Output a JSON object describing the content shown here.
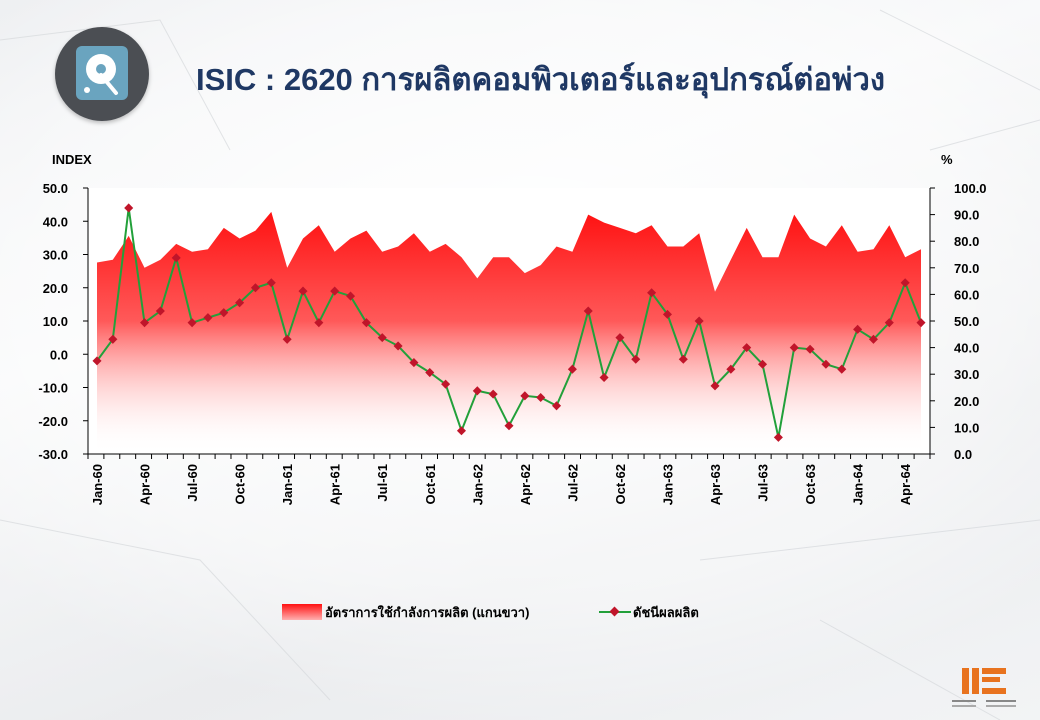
{
  "title": "ISIC : 2620 การผลิตคอมพิวเตอร์และอุปกรณ์ต่อพ่วง",
  "logo_icon": "hard-disk-icon",
  "footer_logo_icon": "oie-logo-icon",
  "colors": {
    "title": "#1f3864",
    "area": "#ff1a1a",
    "line": "#22a03a",
    "marker": "#c0152a"
  },
  "chart_data": {
    "type": "line",
    "ylabel": "INDEX",
    "y2label": "%",
    "ylim": [
      -30,
      50
    ],
    "y2lim": [
      0,
      100
    ],
    "yticks": [
      "50.0",
      "40.0",
      "30.0",
      "20.0",
      "10.0",
      "0.0",
      "-10.0",
      "-20.0",
      "-30.0"
    ],
    "y2ticks": [
      "100.0",
      "90.0",
      "80.0",
      "70.0",
      "60.0",
      "50.0",
      "40.0",
      "30.0",
      "20.0",
      "10.0",
      "0.0"
    ],
    "xtick_labels": [
      "Jan-60",
      "Apr-60",
      "Jul-60",
      "Oct-60",
      "Jan-61",
      "Apr-61",
      "Jul-61",
      "Oct-61",
      "Jan-62",
      "Apr-62",
      "Jul-62",
      "Oct-62",
      "Jan-63",
      "Apr-63",
      "Jul-63",
      "Oct-63",
      "Jan-64",
      "Apr-64"
    ],
    "x": [
      "Jan-60",
      "Feb-60",
      "Mar-60",
      "Apr-60",
      "May-60",
      "Jun-60",
      "Jul-60",
      "Aug-60",
      "Sep-60",
      "Oct-60",
      "Nov-60",
      "Dec-60",
      "Jan-61",
      "Feb-61",
      "Mar-61",
      "Apr-61",
      "May-61",
      "Jun-61",
      "Jul-61",
      "Aug-61",
      "Sep-61",
      "Oct-61",
      "Nov-61",
      "Dec-61",
      "Jan-62",
      "Feb-62",
      "Mar-62",
      "Apr-62",
      "May-62",
      "Jun-62",
      "Jul-62",
      "Aug-62",
      "Sep-62",
      "Oct-62",
      "Nov-62",
      "Dec-62",
      "Jan-63",
      "Feb-63",
      "Mar-63",
      "Apr-63",
      "May-63",
      "Jun-63",
      "Jul-63",
      "Aug-63",
      "Sep-63",
      "Oct-63",
      "Nov-63",
      "Dec-63",
      "Jan-64",
      "Feb-64",
      "Mar-64",
      "Apr-64",
      "May-64"
    ],
    "series": [
      {
        "name": "อัตราการใช้กำลังการผลิต (แกนขวา)",
        "axis": "right",
        "type": "area",
        "values": [
          72,
          73,
          82,
          70,
          73,
          79,
          76,
          77,
          85,
          81,
          84,
          91,
          70,
          81,
          86,
          76,
          81,
          84,
          76,
          78,
          83,
          76,
          79,
          74,
          66,
          74,
          74,
          68,
          71,
          78,
          76,
          90,
          87,
          85,
          83,
          86,
          78,
          78,
          83,
          61,
          73,
          85,
          74,
          74,
          90,
          81,
          78,
          86,
          76,
          77,
          86,
          74,
          77
        ]
      },
      {
        "name": "ดัชนีผลผลิต",
        "axis": "left",
        "type": "line",
        "values": [
          -2,
          4.5,
          44,
          9.5,
          13,
          29,
          9.5,
          11,
          12.5,
          15.5,
          20,
          21.5,
          4.5,
          19,
          9.5,
          19,
          17.5,
          9.5,
          5,
          2.5,
          -2.5,
          -5.5,
          -9,
          -23,
          -11,
          -12,
          -21.5,
          -12.5,
          -13,
          -15.5,
          -4.5,
          13,
          -7,
          5,
          -1.5,
          18.5,
          12,
          -1.5,
          10,
          -9.5,
          -4.5,
          2,
          -3,
          -25,
          2,
          1.5,
          -3,
          -4.5,
          7.5,
          4.5,
          9.5,
          21.5,
          9.5
        ]
      }
    ],
    "legend_position": "bottom"
  }
}
